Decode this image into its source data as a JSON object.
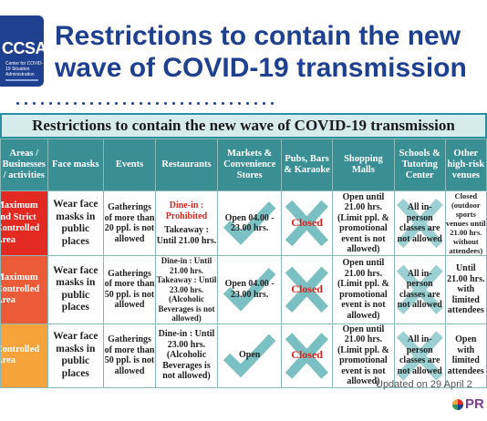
{
  "logo": {
    "text": "CCSA",
    "subtext": "Center for COVID-19 Situation Administration"
  },
  "headline": {
    "line1": "Restrictions to contain the new",
    "line2": "wave of COVID-19 transmission"
  },
  "table_title": "Restrictions to contain the new wave of COVID-19 transmission",
  "headers": [
    "Areas / Businesses / activities",
    "Face masks",
    "Events",
    "Restaurants",
    "Markets & Convenience Stores",
    "Pubs, Bars & Karaoke",
    "Shopping Malls",
    "Schools & Tutoring Center",
    "Other high-risk venues"
  ],
  "rows": [
    {
      "area": "Maximum and Strict Controlled Area",
      "color": "#e22a23",
      "face_masks": "Wear face masks in public places",
      "events": "Gatherings of more than 20 ppl. is not allowed",
      "restaurants": {
        "prohibited": "Dine-in : Prohibited",
        "rest": "Takeaway : Until 21.00 hrs."
      },
      "markets": "Open 04.00 - 23.00 hrs.",
      "pubs": "Closed",
      "malls": "Open until 21.00 hrs. (Limit ppl. & promotional event is not allowed)",
      "schools": "All in-person classes are not allowed",
      "other": "Closed (outdoor sports venues until 21.00 hrs. without attendees)"
    },
    {
      "area": "Maximum Controlled Area",
      "color": "#ec5b38",
      "face_masks": "Wear face masks in public places",
      "events": "Gatherings of more than 50 ppl. is not allowed",
      "restaurants": {
        "prohibited": "",
        "rest": "Dine-in : Until 21.00 hrs. Takeaway : Until 23.00 hrs. (Alcoholic Beverages is not allowed)"
      },
      "markets": "Open 04.00 - 23.00 hrs.",
      "pubs": "Closed",
      "malls": "Open until 21.00 hrs. (Limit ppl. & promotional event is not allowed)",
      "schools": "All in-person classes are not allowed",
      "other": "Until 21.00 hrs. with limited attendees"
    },
    {
      "area": "Controlled Area",
      "color": "#f6a33b",
      "face_masks": "Wear face masks in public places",
      "events": "Gatherings of more than 50 ppl. is not allowed",
      "restaurants": {
        "prohibited": "",
        "rest": "Dine-in : Until 23.00 hrs. (Alcoholic Beverages is not allowed)"
      },
      "markets": "Open",
      "pubs": "Closed",
      "malls": "Open until 21.00 hrs. (Limit ppl. & promotional event is not allowed)",
      "schools": "All in-person classes are not allowed",
      "other": "Open with limited attendees"
    }
  ],
  "updated": "Updated on 29 April 2",
  "brand": "PR"
}
